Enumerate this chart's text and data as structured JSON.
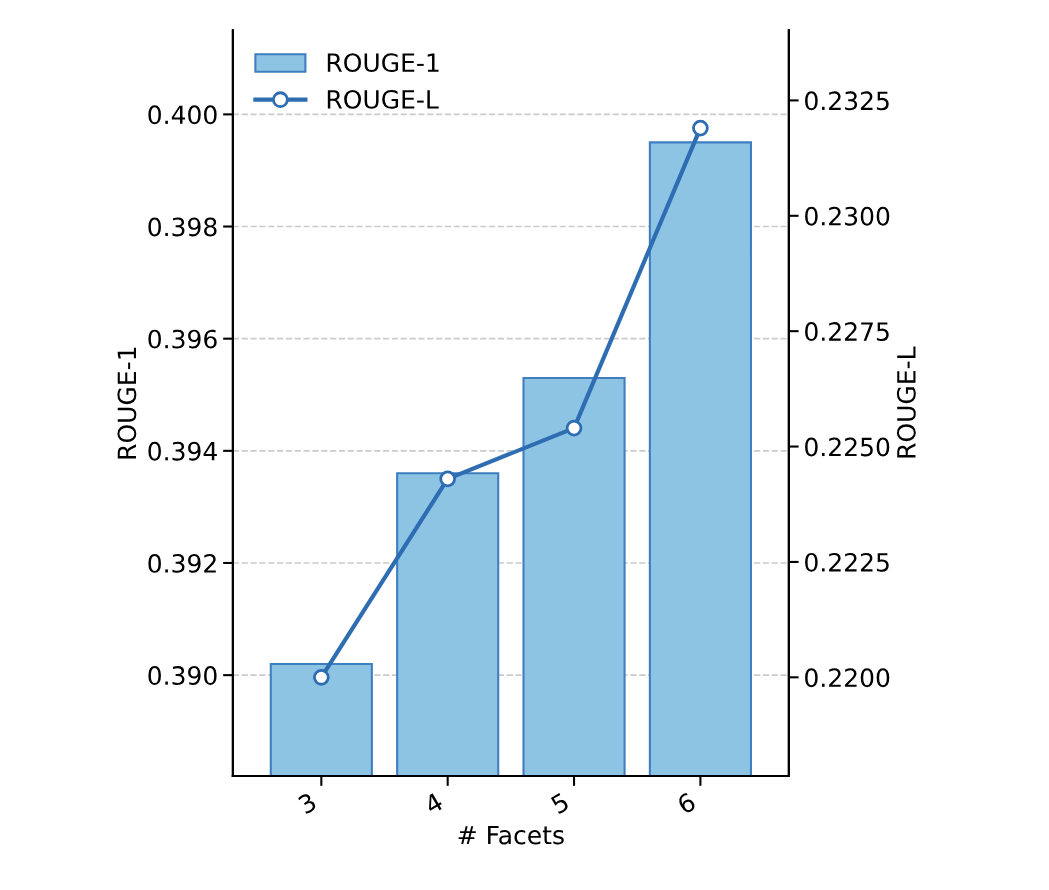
{
  "chart_data": {
    "type": "bar",
    "xlabel": "# Facets",
    "ylabel": "ROUGE-1",
    "y2label": "ROUGE-L",
    "categories": [
      "3",
      "4",
      "5",
      "6"
    ],
    "series": [
      {
        "name": "ROUGE-1",
        "color": "#8dc4e4",
        "values": [
          0.3902,
          0.3936,
          0.3953,
          0.3995
        ]
      },
      {
        "name": "ROUGE-L",
        "type": "line",
        "axis": "y2",
        "color": "#2f6db3",
        "values": [
          0.22,
          0.2243,
          0.2254,
          0.2319
        ]
      }
    ],
    "ylim": [
      0.3882,
      0.4015
    ],
    "yticks": [
      {
        "value": 0.39,
        "label": "0.390"
      },
      {
        "value": 0.392,
        "label": "0.392"
      },
      {
        "value": 0.394,
        "label": "0.394"
      },
      {
        "value": 0.396,
        "label": "0.396"
      },
      {
        "value": 0.398,
        "label": "0.398"
      },
      {
        "value": 0.4,
        "label": "0.400"
      }
    ],
    "y2lim": [
      0.21786,
      0.23402
    ],
    "y2ticks": [
      {
        "value": 0.22,
        "label": "0.2200"
      },
      {
        "value": 0.2225,
        "label": "0.2225"
      },
      {
        "value": 0.225,
        "label": "0.2250"
      },
      {
        "value": 0.2275,
        "label": "0.2275"
      },
      {
        "value": 0.23,
        "label": "0.2300"
      },
      {
        "value": 0.2325,
        "label": "0.2325"
      }
    ],
    "grid": "y",
    "legend": "top left",
    "marker": "circle",
    "line_style": "solid"
  }
}
